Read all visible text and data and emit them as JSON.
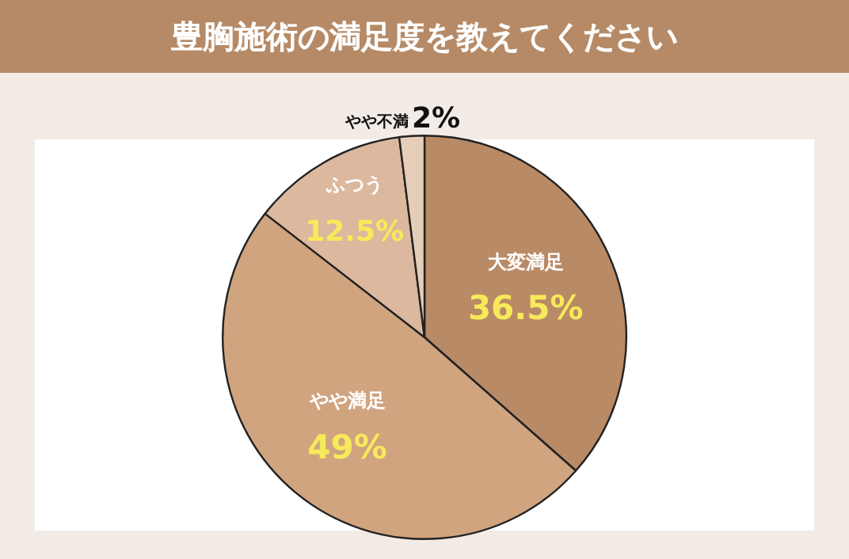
{
  "chart_data": {
    "type": "pie",
    "title": "豊胸施術の満足度を教えてください",
    "categories": [
      "大変満足",
      "やや満足",
      "ふつう",
      "やや不満"
    ],
    "values": [
      36.5,
      49,
      12.5,
      2
    ],
    "colors": [
      "#b98a66",
      "#d0a47f",
      "#dcb89e",
      "#e6cdb8"
    ],
    "value_labels": [
      "36.5%",
      "49%",
      "12.5%",
      "2%"
    ],
    "legend": false
  }
}
